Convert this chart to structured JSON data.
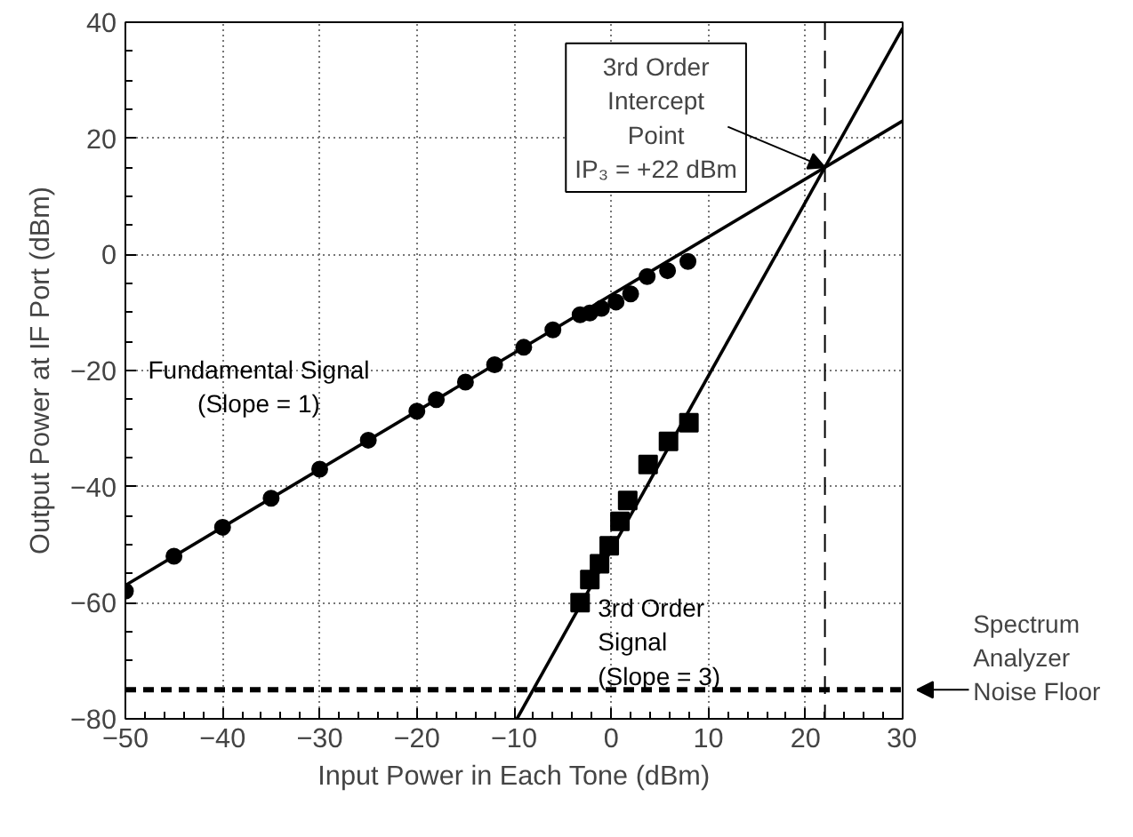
{
  "chart_data": {
    "type": "scatter",
    "xlabel": "Input Power in Each Tone (dBm)",
    "ylabel": "Output Power at IF Port (dBm)",
    "xlim": [
      -50,
      30
    ],
    "xticks": [
      -50,
      -40,
      -30,
      -20,
      -10,
      0,
      10,
      20,
      30
    ],
    "ylim": [
      -80,
      40
    ],
    "yticks": [
      -80,
      -60,
      -40,
      -20,
      0,
      20,
      40
    ],
    "grid": true,
    "series": [
      {
        "name": "Fundamental Signal\n(Slope = 1)",
        "marker": "circle",
        "color": "#000000",
        "x": [
          -50,
          -45,
          -40,
          -35,
          -30,
          -25,
          -20,
          -18,
          -15,
          -12,
          -9,
          -6,
          -3.2,
          -2.2,
          -1,
          0.5,
          2,
          3.7,
          5.8,
          7.9
        ],
        "values": [
          -58,
          -52,
          -47,
          -42,
          -37,
          -32,
          -27,
          -25,
          -22,
          -19,
          -16,
          -13,
          -10.4,
          -10.1,
          -9.3,
          -8.2,
          -6.8,
          -3.8,
          -2.8,
          -1.2
        ]
      },
      {
        "name": "3rd Order\nSignal\n(Slope = 3)",
        "marker": "square",
        "color": "#000000",
        "x": [
          -3.2,
          -2.2,
          -1.2,
          -0.2,
          0.9,
          1.7,
          3.8,
          5.9,
          8
        ],
        "values": [
          -60,
          -56,
          -53.3,
          -50.2,
          -46,
          -42.4,
          -36.2,
          -32.2,
          -29
        ]
      },
      {
        "type": "line",
        "line_style": "solid",
        "color": "#000000",
        "x": [
          -50,
          30
        ],
        "values": [
          -57,
          23
        ]
      },
      {
        "type": "line",
        "line_style": "solid",
        "color": "#000000",
        "x": [
          -9.7,
          30
        ],
        "values": [
          -80,
          39
        ]
      }
    ],
    "ref_lines": [
      {
        "axis": "y",
        "value": -75,
        "label": "Spectrum\nAnalyzer\nNoise Floor",
        "line_style": "dashed",
        "color": "#000000"
      },
      {
        "axis": "x",
        "value": 22,
        "label": null,
        "line_style": "dashed",
        "color": "#000000"
      }
    ],
    "annotations": [
      {
        "text": "3rd Order\nIntercept\nPoint\nIP₃ = +22 dBm",
        "x": 22,
        "y": 15
      }
    ]
  }
}
